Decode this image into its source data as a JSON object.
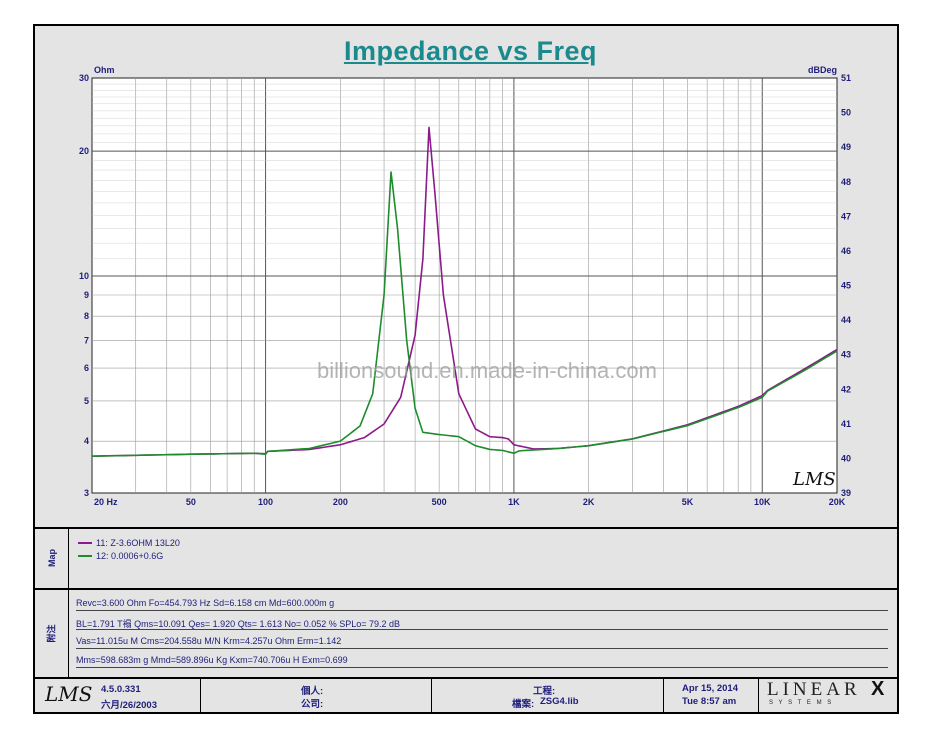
{
  "chart_data": {
    "type": "line",
    "title": "Impedance vs Freq",
    "y_left_unit": "Ohm",
    "y_right_unit": "dBDeg",
    "x_scale": "log",
    "y_scale": "log",
    "xlim": [
      20,
      20000
    ],
    "ylim": [
      3,
      30
    ],
    "y_right_lim": [
      39,
      51
    ],
    "x_ticks": [
      {
        "value": 20,
        "label": "20  Hz"
      },
      {
        "value": 50,
        "label": "50"
      },
      {
        "value": 100,
        "label": "100"
      },
      {
        "value": 200,
        "label": "200"
      },
      {
        "value": 500,
        "label": "500"
      },
      {
        "value": 1000,
        "label": "1K"
      },
      {
        "value": 2000,
        "label": "2K"
      },
      {
        "value": 5000,
        "label": "5K"
      },
      {
        "value": 10000,
        "label": "10K"
      },
      {
        "value": 20000,
        "label": "20K"
      }
    ],
    "y_left_ticks": [
      {
        "value": 3,
        "label": "3"
      },
      {
        "value": 4,
        "label": "4"
      },
      {
        "value": 5,
        "label": "5"
      },
      {
        "value": 6,
        "label": "6"
      },
      {
        "value": 7,
        "label": "7"
      },
      {
        "value": 8,
        "label": "8"
      },
      {
        "value": 9,
        "label": "9"
      },
      {
        "value": 10,
        "label": "10"
      },
      {
        "value": 20,
        "label": "20"
      },
      {
        "value": 30,
        "label": "30"
      }
    ],
    "y_right_ticks": [
      {
        "value": 39,
        "label": "39"
      },
      {
        "value": 40,
        "label": "40"
      },
      {
        "value": 41,
        "label": "41"
      },
      {
        "value": 42,
        "label": "42"
      },
      {
        "value": 43,
        "label": "43"
      },
      {
        "value": 44,
        "label": "44"
      },
      {
        "value": 45,
        "label": "45"
      },
      {
        "value": 46,
        "label": "46"
      },
      {
        "value": 47,
        "label": "47"
      },
      {
        "value": 48,
        "label": "48"
      },
      {
        "value": 49,
        "label": "49"
      },
      {
        "value": 50,
        "label": "50"
      },
      {
        "value": 51,
        "label": "51"
      }
    ],
    "grid": true,
    "series": [
      {
        "name": "11: Z-3.6OHM 13L20",
        "color": "#8b1a8b",
        "points": [
          [
            20,
            3.68
          ],
          [
            50,
            3.72
          ],
          [
            90,
            3.74
          ],
          [
            100,
            3.73
          ],
          [
            102,
            3.78
          ],
          [
            150,
            3.82
          ],
          [
            200,
            3.92
          ],
          [
            250,
            4.08
          ],
          [
            300,
            4.4
          ],
          [
            350,
            5.1
          ],
          [
            400,
            7.2
          ],
          [
            430,
            11
          ],
          [
            455,
            22.8
          ],
          [
            480,
            16
          ],
          [
            520,
            9
          ],
          [
            600,
            5.2
          ],
          [
            700,
            4.28
          ],
          [
            800,
            4.1
          ],
          [
            900,
            4.08
          ],
          [
            950,
            4.05
          ],
          [
            1000,
            3.92
          ],
          [
            1200,
            3.83
          ],
          [
            1500,
            3.84
          ],
          [
            2000,
            3.9
          ],
          [
            3000,
            4.05
          ],
          [
            5000,
            4.38
          ],
          [
            8000,
            4.85
          ],
          [
            10000,
            5.15
          ],
          [
            10500,
            5.3
          ],
          [
            15000,
            6.0
          ],
          [
            20000,
            6.65
          ]
        ]
      },
      {
        "name": "12: 0.0006+0.6G",
        "color": "#1e8c2c",
        "points": [
          [
            20,
            3.68
          ],
          [
            50,
            3.72
          ],
          [
            90,
            3.74
          ],
          [
            100,
            3.72
          ],
          [
            102,
            3.78
          ],
          [
            150,
            3.84
          ],
          [
            200,
            4.0
          ],
          [
            240,
            4.35
          ],
          [
            270,
            5.2
          ],
          [
            300,
            9
          ],
          [
            320,
            17.8
          ],
          [
            340,
            13
          ],
          [
            370,
            7
          ],
          [
            400,
            4.8
          ],
          [
            430,
            4.2
          ],
          [
            500,
            4.15
          ],
          [
            600,
            4.1
          ],
          [
            700,
            3.9
          ],
          [
            800,
            3.82
          ],
          [
            900,
            3.8
          ],
          [
            1000,
            3.74
          ],
          [
            1050,
            3.79
          ],
          [
            1500,
            3.84
          ],
          [
            2000,
            3.9
          ],
          [
            3000,
            4.05
          ],
          [
            5000,
            4.36
          ],
          [
            8000,
            4.82
          ],
          [
            10000,
            5.1
          ],
          [
            10500,
            5.28
          ],
          [
            15000,
            5.95
          ],
          [
            20000,
            6.6
          ]
        ]
      }
    ]
  },
  "watermark": "billionsound.en.made-in-china.com",
  "lms_plot_logo": "LMS",
  "map_label": "Map",
  "legend": [
    {
      "text": "11: Z-3.6OHM 13L20",
      "color": "#8b1a8b"
    },
    {
      "text": "12: 0.0006+0.6G",
      "color": "#1e8c2c"
    }
  ],
  "params_label": "附注",
  "params": [
    "Revc=3.600 Ohm  Fo=454.793 Hz  Sd=6.158 cm    Md=600.000m g",
    "BL=1.791 T褟  Qms=10.091  Qes= 1.920  Qts= 1.613  No= 0.052 %  SPLo= 79.2 dB",
    "Vas=11.015u M    Cms=204.558u M/N  Krm=4.257u Ohm  Erm=1.142",
    "Mms=598.683m g  Mmd=589.896u Kg  Kxm=740.706u H  Exm=0.699"
  ],
  "footer": {
    "logo": "LMS",
    "version": "4.5.0.331",
    "version_date": "六月/26/2003",
    "person_label": "個人:",
    "company_label": "公司:",
    "project_label": "工程:",
    "file_label": "檔案:",
    "file_value": "ZSG4.lib",
    "date": "Apr 15, 2014",
    "time": "Tue  8:57 am",
    "brand": "LINEAR",
    "brand_x": "X",
    "brand_sub": "S Y S T E M S"
  }
}
